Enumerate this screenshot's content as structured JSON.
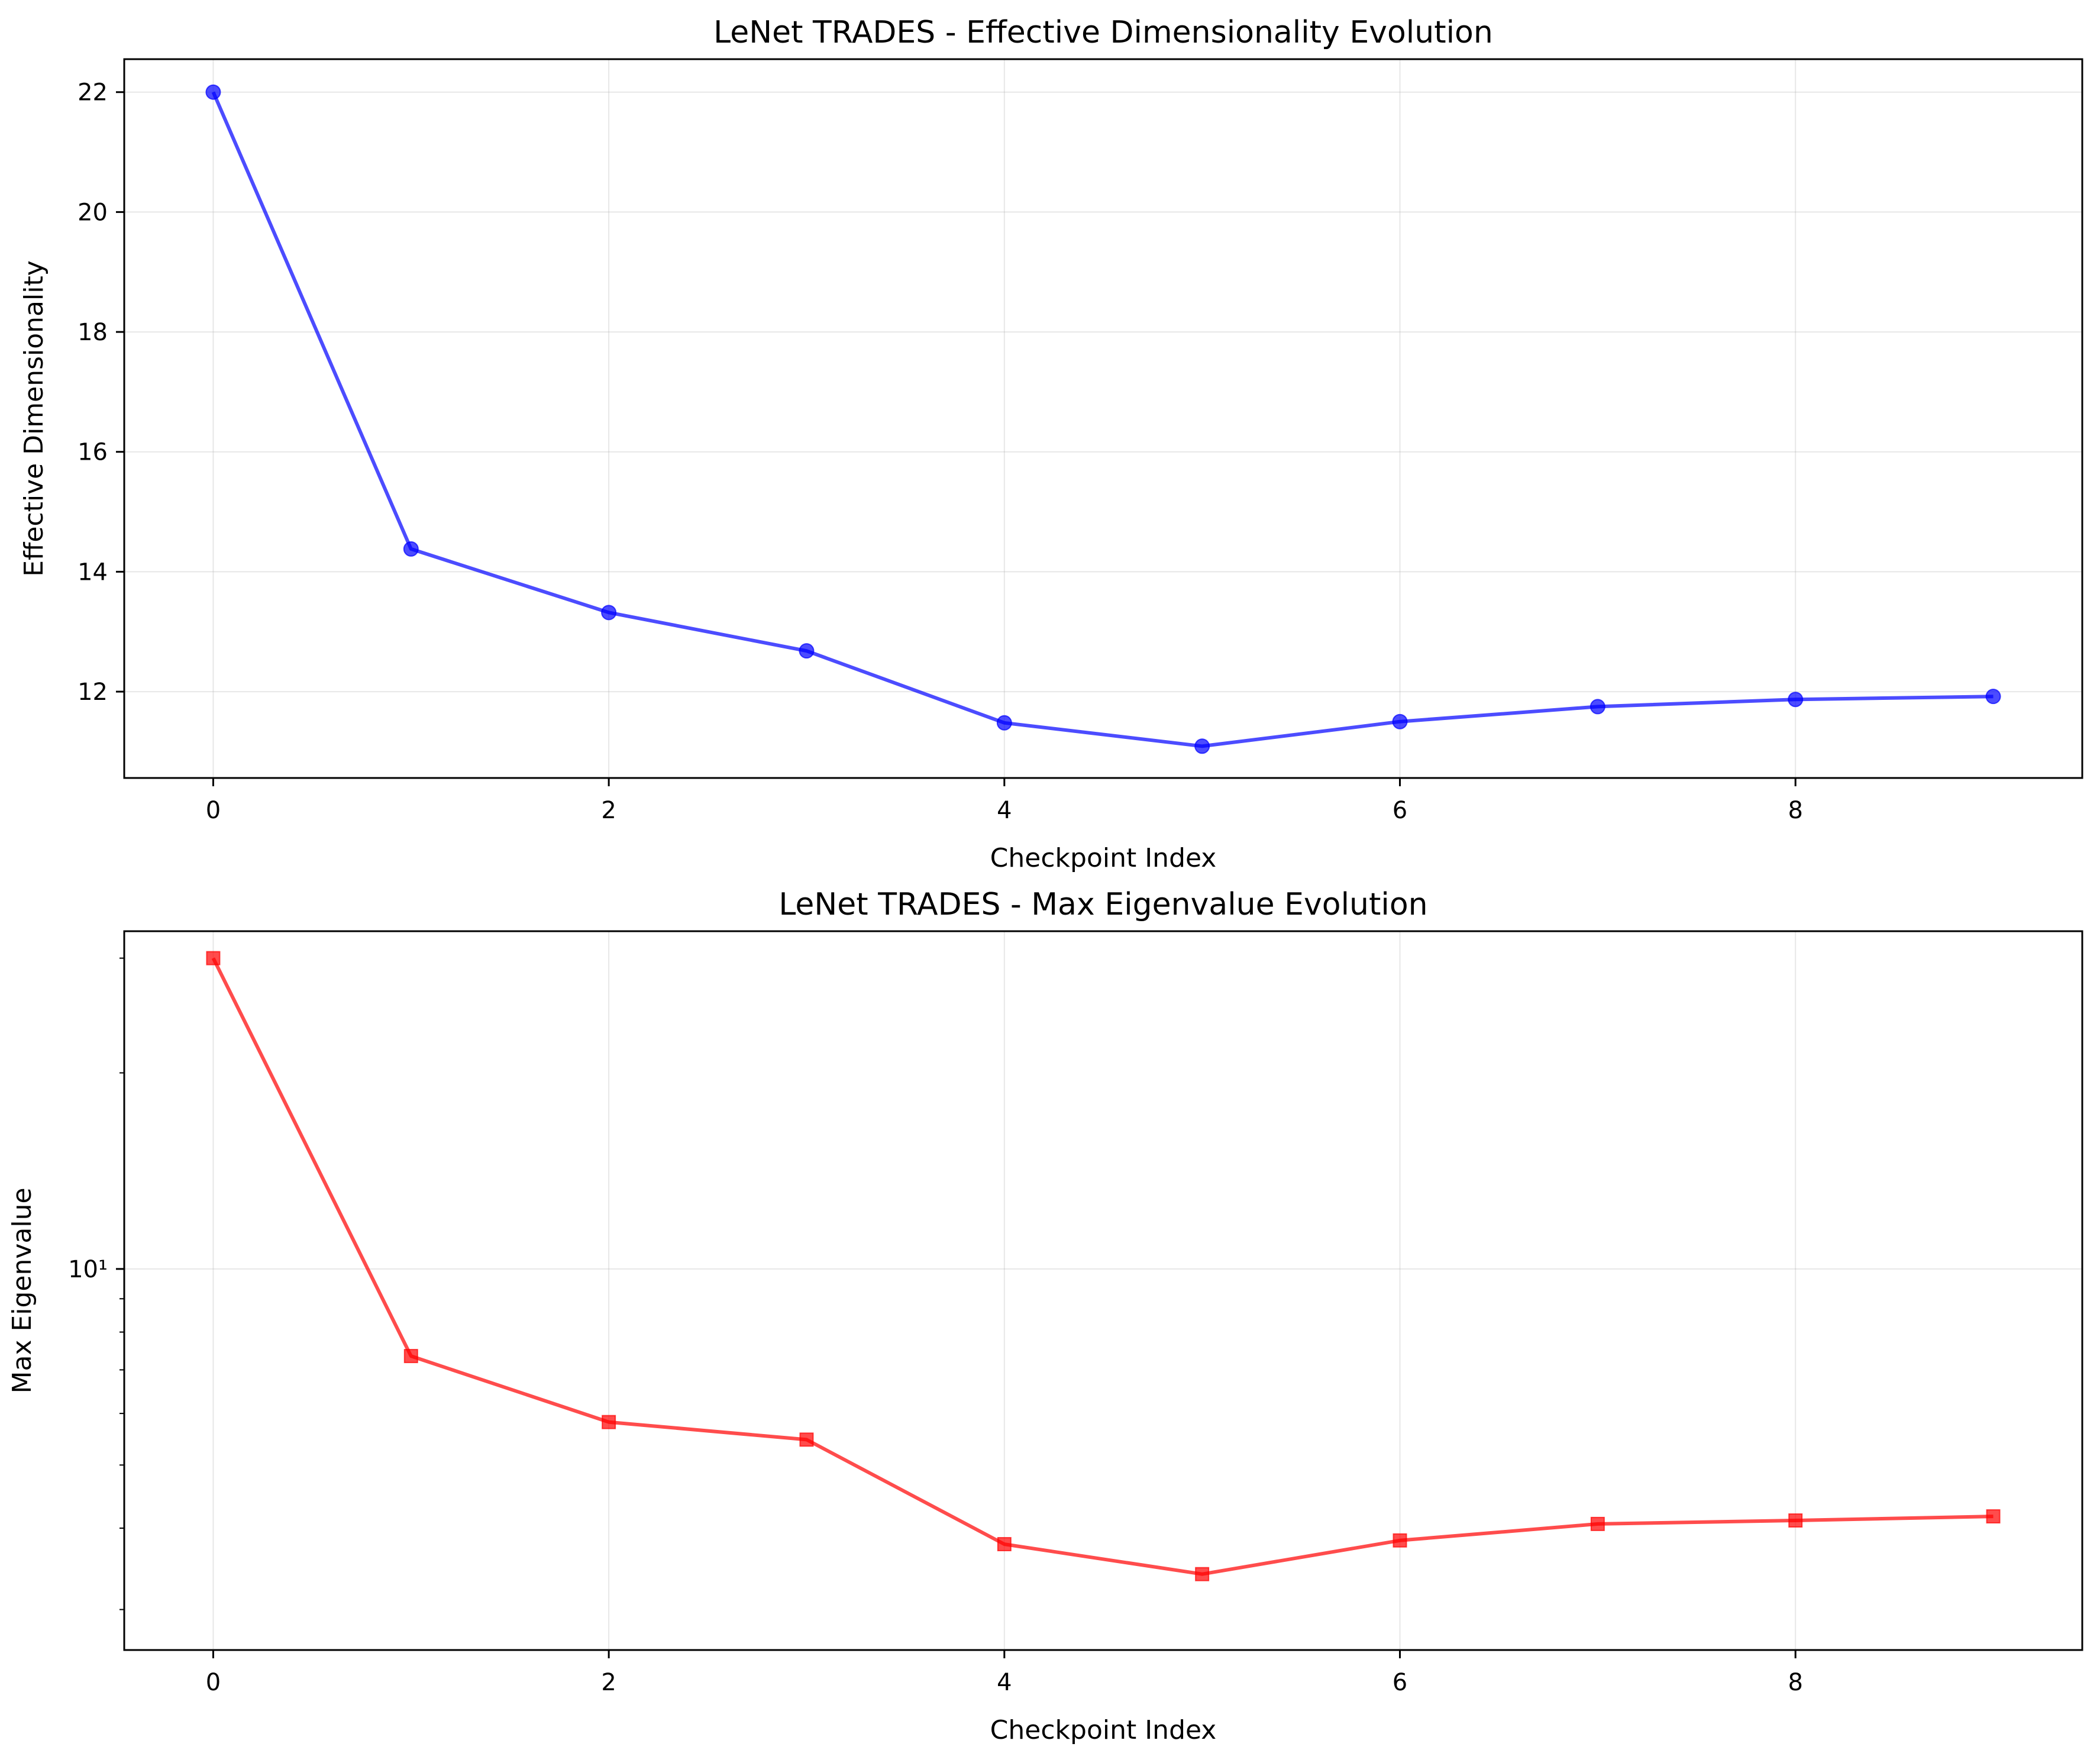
{
  "chart_data": [
    {
      "type": "line",
      "title": "LeNet TRADES - Effective Dimensionality Evolution",
      "xlabel": "Checkpoint Index",
      "ylabel": "Effective Dimensionality",
      "x": [
        0,
        1,
        2,
        3,
        4,
        5,
        6,
        7,
        8,
        9
      ],
      "series": [
        {
          "values": [
            22.0,
            14.38,
            13.32,
            12.68,
            11.48,
            11.09,
            11.5,
            11.75,
            11.87,
            11.92
          ],
          "color": "#0000ff",
          "marker": "circle"
        }
      ],
      "xlim": [
        -0.45,
        9.45
      ],
      "ylim": [
        10.56,
        22.55
      ],
      "y_scale": "linear",
      "xticks": [
        0,
        2,
        4,
        6,
        8
      ],
      "yticks": [
        12,
        14,
        16,
        18,
        20,
        22
      ],
      "ytick_labels": [
        "12",
        "14",
        "16",
        "18",
        "20",
        "22"
      ],
      "grid": true
    },
    {
      "type": "line",
      "title": "LeNet TRADES - Max Eigenvalue Evolution",
      "xlabel": "Checkpoint Index",
      "ylabel": "Max Eigenvalue",
      "x": [
        0,
        1,
        2,
        3,
        4,
        5,
        6,
        7,
        8,
        9
      ],
      "series": [
        {
          "values": [
            30.0,
            7.35,
            5.82,
            5.47,
            3.78,
            3.4,
            3.83,
            4.06,
            4.11,
            4.17
          ],
          "color": "#ff0000",
          "marker": "square"
        }
      ],
      "xlim": [
        -0.45,
        9.45
      ],
      "ylim": [
        2.6,
        33.0
      ],
      "y_scale": "log",
      "xticks": [
        0,
        2,
        4,
        6,
        8
      ],
      "yticks": [
        10
      ],
      "ytick_labels": [
        "10¹"
      ],
      "minor_yticks": [
        3,
        4,
        5,
        6,
        7,
        8,
        9,
        20,
        30
      ],
      "grid": true
    }
  ]
}
